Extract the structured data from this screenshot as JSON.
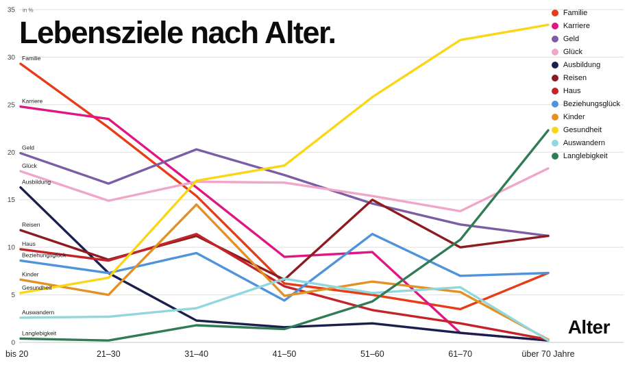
{
  "title": "Lebensziele nach Alter.",
  "axis": {
    "y_unit": "in %",
    "x_label": "Alter"
  },
  "chart_data": {
    "type": "line",
    "title": "Lebensziele nach Alter.",
    "ylabel": "in %",
    "xlabel": "Alter",
    "ylim": [
      0,
      35
    ],
    "yticks": [
      0,
      5,
      10,
      15,
      20,
      25,
      30,
      35
    ],
    "grid": true,
    "legend_position": "top-right",
    "categories": [
      "bis 20",
      "21–30",
      "31–40",
      "41–50",
      "51–60",
      "61–70",
      "über 70 Jahre"
    ],
    "series": [
      {
        "name": "Familie",
        "color": "#e63c17",
        "values": [
          29.3,
          22.6,
          15.4,
          6.2,
          5.0,
          3.5,
          7.3
        ]
      },
      {
        "name": "Karriere",
        "color": "#df1683",
        "values": [
          24.8,
          23.5,
          16.3,
          9.0,
          9.5,
          1.0,
          0.2
        ]
      },
      {
        "name": "Geld",
        "color": "#7b5ca5",
        "values": [
          19.9,
          16.7,
          20.3,
          17.6,
          14.6,
          12.4,
          11.2
        ]
      },
      {
        "name": "Glück",
        "color": "#f0a6c8",
        "values": [
          18.0,
          14.9,
          16.9,
          16.8,
          15.4,
          13.8,
          18.3
        ]
      },
      {
        "name": "Ausbildung",
        "color": "#1b1f4e",
        "values": [
          16.3,
          7.3,
          2.3,
          1.6,
          2.0,
          1.0,
          0.2
        ]
      },
      {
        "name": "Reisen",
        "color": "#8e1b20",
        "values": [
          11.8,
          8.7,
          11.2,
          6.6,
          15.0,
          10.0,
          11.2
        ]
      },
      {
        "name": "Haus",
        "color": "#c2242a",
        "values": [
          9.8,
          8.6,
          11.4,
          5.9,
          3.4,
          2.0,
          0.3
        ]
      },
      {
        "name": "Beziehungsglück",
        "color": "#4f93da",
        "values": [
          8.6,
          7.3,
          9.4,
          4.4,
          11.4,
          7.0,
          7.3
        ]
      },
      {
        "name": "Kinder",
        "color": "#e39125",
        "values": [
          6.6,
          5.0,
          14.5,
          4.9,
          6.4,
          5.3,
          0.3
        ]
      },
      {
        "name": "Gesundheit",
        "color": "#f9d616",
        "values": [
          5.2,
          6.8,
          17.0,
          18.6,
          25.8,
          31.8,
          33.4
        ]
      },
      {
        "name": "Auswandern",
        "color": "#92d7dd",
        "values": [
          2.6,
          2.7,
          3.6,
          6.7,
          5.2,
          5.8,
          0.2
        ]
      },
      {
        "name": "Langlebigkeit",
        "color": "#2f7c55",
        "values": [
          0.4,
          0.2,
          1.8,
          1.4,
          4.3,
          10.8,
          22.3
        ]
      }
    ]
  }
}
